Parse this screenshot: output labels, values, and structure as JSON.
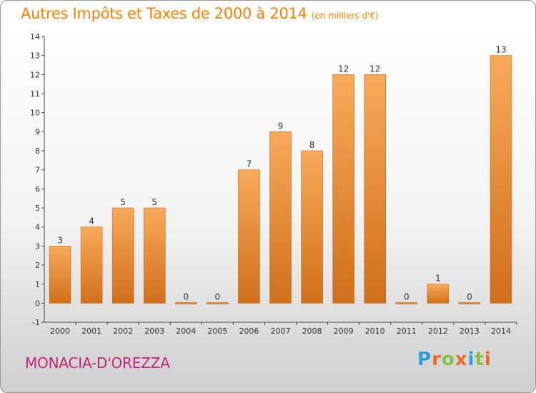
{
  "title": "Autres Impôts et Taxes de 2000 à 2014",
  "unit": "(en milliers d'€)",
  "commune": "MONACIA-D'OREZZA",
  "logo": {
    "text": "Proxiti",
    "colors": [
      "#2e9de0",
      "#ee6a2a",
      "#84c341",
      "#ee6a2a",
      "#2e9de0",
      "#84c341",
      "#ee6a2a"
    ]
  },
  "colors": {
    "title": "#ff7f00",
    "bar_top": "#f8aa5a",
    "bar_bottom": "#d06f1b",
    "commune": "#c1257a"
  },
  "chart_data": {
    "type": "bar",
    "categories": [
      "2000",
      "2001",
      "2002",
      "2003",
      "2004",
      "2005",
      "2006",
      "2007",
      "2008",
      "2009",
      "2010",
      "2011",
      "2012",
      "2013",
      "2014"
    ],
    "values": [
      3,
      4,
      5,
      5,
      0,
      0,
      7,
      9,
      8,
      12,
      12,
      0,
      1,
      0,
      13
    ],
    "data_labels": [
      "3",
      "4",
      "5",
      "5",
      "0",
      "0",
      "7",
      "9",
      "8",
      "12",
      "12",
      "0",
      "1",
      "0",
      "13"
    ],
    "ylim": [
      -1,
      14
    ],
    "yticks": [
      -1,
      0,
      1,
      2,
      3,
      4,
      5,
      6,
      7,
      8,
      9,
      10,
      11,
      12,
      13,
      14
    ],
    "ytick_labels": [
      "-1",
      "0",
      "1",
      "2",
      "3",
      "4",
      "5",
      "6",
      "7",
      "8",
      "9",
      "10",
      "11",
      "12",
      "13",
      "14"
    ],
    "xlabel": "",
    "ylabel": "",
    "grid": false,
    "legend": "none"
  }
}
